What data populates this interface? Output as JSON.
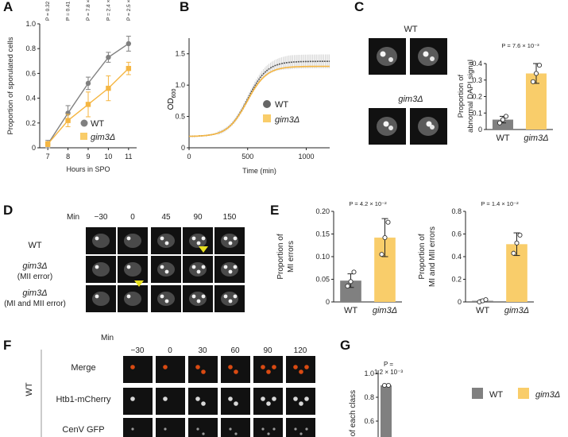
{
  "colors": {
    "wt": "#808080",
    "gim3": "#f5b642",
    "gim3_light": "#f9cd6a",
    "axis": "#222222",
    "micro_bg": "#111111",
    "merge_red": "#d94a12"
  },
  "panels": {
    "A": {
      "letter": "A"
    },
    "B": {
      "letter": "B"
    },
    "C": {
      "letter": "C"
    },
    "D": {
      "letter": "D"
    },
    "E": {
      "letter": "E"
    },
    "F": {
      "letter": "F"
    },
    "G": {
      "letter": "G"
    }
  },
  "chart_data": [
    {
      "id": "A",
      "type": "line",
      "xlabel": "Hours in SPO",
      "ylabel": "Proportion of sporulated cells",
      "categories": [
        "7",
        "8",
        "9",
        "10",
        "11"
      ],
      "x": [
        7,
        8,
        9,
        10,
        11
      ],
      "xlim": [
        6.6,
        11.4
      ],
      "ylim": [
        0,
        1.0
      ],
      "yticks": [
        "0",
        "0.2",
        "0.4",
        "0.6",
        "0.8",
        "1.0"
      ],
      "p_values": [
        "P = 0.32",
        "P = 0.41",
        "P = 7.8 × 10⁻²",
        "P = 2.4 × 10⁻²",
        "P = 2.5 × 10⁻²"
      ],
      "legend": [
        "WT",
        "gim3Δ"
      ],
      "series": [
        {
          "name": "WT",
          "values": [
            0.03,
            0.28,
            0.52,
            0.73,
            0.84
          ],
          "err": [
            0.03,
            0.06,
            0.05,
            0.04,
            0.06
          ]
        },
        {
          "name": "gim3Δ",
          "values": [
            0.03,
            0.22,
            0.35,
            0.48,
            0.64
          ],
          "err": [
            0.02,
            0.05,
            0.1,
            0.1,
            0.05
          ]
        }
      ]
    },
    {
      "id": "B",
      "type": "line",
      "xlabel": "Time (min)",
      "ylabel": "OD600",
      "ylabel_main": "OD",
      "ylabel_sub": "600",
      "xlim": [
        0,
        1200
      ],
      "ylim": [
        0,
        1.75
      ],
      "xticks": [
        "0",
        "500",
        "1000"
      ],
      "yticks": [
        "0",
        "0.5",
        "1.0",
        "1.5"
      ],
      "legend": [
        "WT",
        "gim3Δ"
      ],
      "series": [
        {
          "name": "WT",
          "model": {
            "base": 0.18,
            "top": 1.38,
            "mid": 500,
            "k": 0.012
          }
        },
        {
          "name": "gim3Δ",
          "model": {
            "base": 0.18,
            "top": 1.3,
            "mid": 495,
            "k": 0.012
          }
        }
      ]
    },
    {
      "id": "C",
      "type": "bar",
      "ylabel": "Proportion of abnormal DAPI signal",
      "ylabel_line1": "Proportion of",
      "ylabel_line2": "abnormal DAPI signal",
      "p_value": "P = 7.6 × 10⁻³",
      "categories": [
        "WT",
        "gim3Δ"
      ],
      "values": [
        0.06,
        0.34
      ],
      "err": [
        0.02,
        0.06
      ],
      "points": [
        [
          0.04,
          0.06,
          0.08
        ],
        [
          0.29,
          0.34,
          0.39
        ]
      ],
      "ylim": [
        0,
        0.4
      ],
      "yticks": [
        "0",
        "0.1",
        "0.2",
        "0.3",
        "0.4"
      ],
      "micrograph_labels": [
        "WT",
        "gim3Δ"
      ]
    },
    {
      "id": "E1",
      "type": "bar",
      "ylabel": "Proportion of MI errors",
      "ylabel_line1": "Proportion of",
      "ylabel_line2": "MI errors",
      "p_value": "P = 4.2 × 10⁻²",
      "categories": [
        "WT",
        "gim3Δ"
      ],
      "values": [
        0.047,
        0.142
      ],
      "err": [
        0.015,
        0.042
      ],
      "points": [
        [
          0.035,
          0.045,
          0.066
        ],
        [
          0.105,
          0.142,
          0.176
        ]
      ],
      "ylim": [
        0,
        0.2
      ],
      "yticks": [
        "0",
        "0.05",
        "0.10",
        "0.15",
        "0.20"
      ]
    },
    {
      "id": "E2",
      "type": "bar",
      "ylabel": "Proportion of MI and MII errors",
      "ylabel_line1": "Proportion of",
      "ylabel_line2": "MI and MII errors",
      "p_value": "P = 1.4 × 10⁻²",
      "categories": [
        "WT",
        "gim3Δ"
      ],
      "values": [
        0.01,
        0.51
      ],
      "err": [
        0.01,
        0.1
      ],
      "points": [
        [
          0.0,
          0.01,
          0.02
        ],
        [
          0.43,
          0.52,
          0.59
        ]
      ],
      "ylim": [
        0,
        0.8
      ],
      "yticks": [
        "0",
        "0.2",
        "0.4",
        "0.6",
        "0.8"
      ]
    },
    {
      "id": "G",
      "type": "bar",
      "ylabel": "of each class",
      "p_value_line1": "P =",
      "p_value_line2": "1.2 × 10⁻³",
      "categories": [
        "WT"
      ],
      "values": [
        0.9
      ],
      "ylim": [
        0,
        1.0
      ],
      "yticks": [
        "0.6",
        "0.8",
        "1.0"
      ],
      "legend": [
        "WT",
        "gim3Δ"
      ]
    }
  ],
  "panelD": {
    "min_label": "Min",
    "timepoints": [
      "−30",
      "0",
      "45",
      "90",
      "150"
    ],
    "rows": [
      "WT",
      "gim3Δ",
      "(MII error)",
      "gim3Δ",
      "(MI and MII error)"
    ]
  },
  "panelF": {
    "min_label": "Min",
    "timepoints": [
      "−30",
      "0",
      "30",
      "60",
      "90",
      "120"
    ],
    "side_label": "WT",
    "rows": [
      "Merge",
      "Htb1-mCherry",
      "CenV GFP"
    ]
  }
}
